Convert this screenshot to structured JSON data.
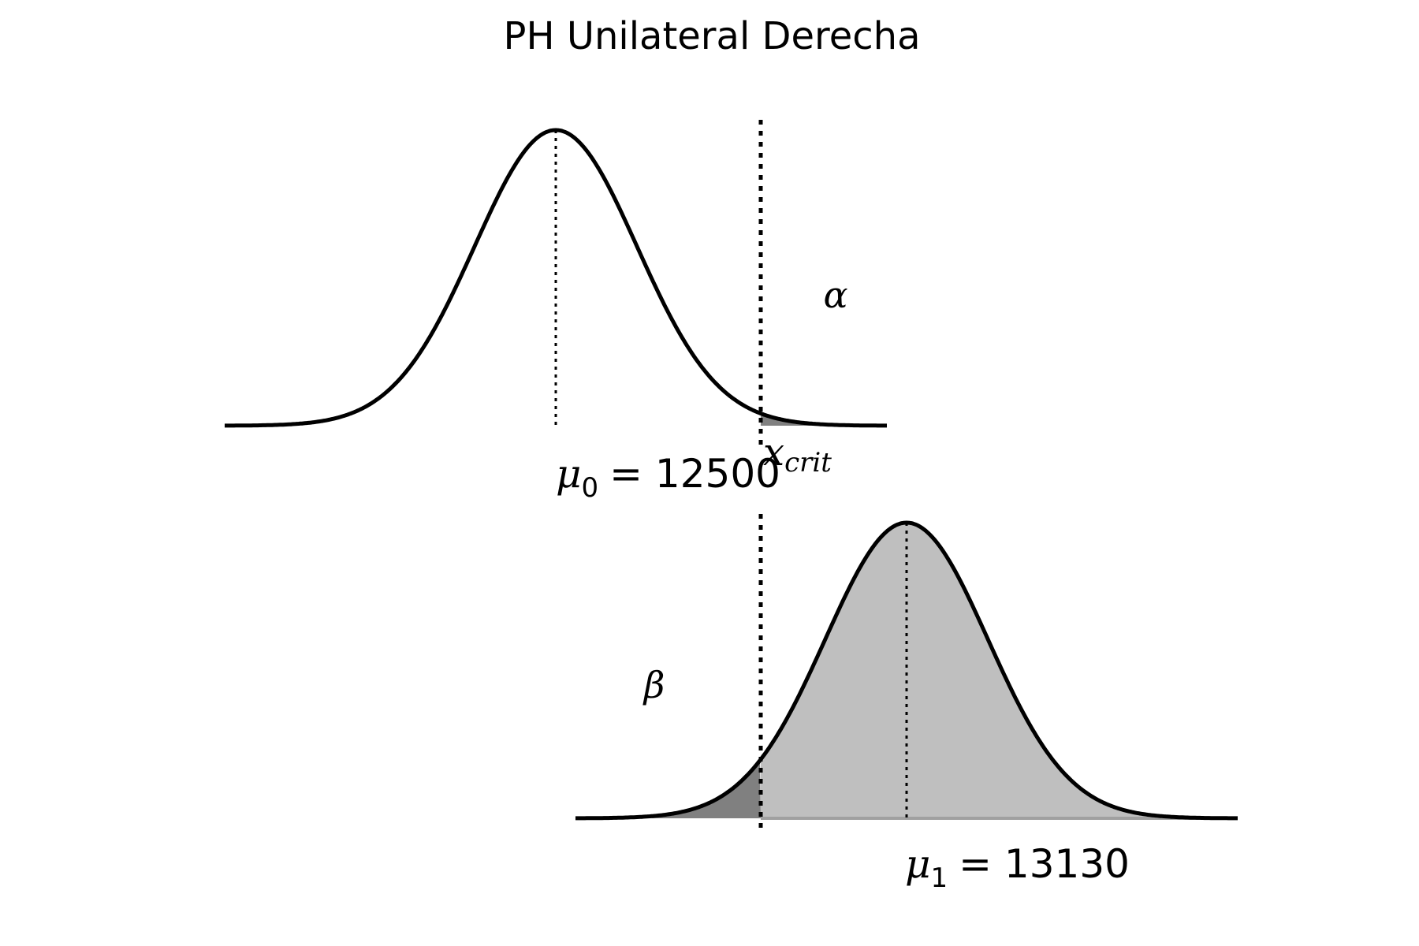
{
  "title": "PH Unilateral Derecha",
  "null_distribution": {
    "mean_label_symbol": "μ",
    "mean_label_subscript": "0",
    "mean_label_value": "= 12500",
    "mean": 12500
  },
  "alternative_distribution": {
    "mean_label_symbol": "μ",
    "mean_label_subscript": "1",
    "mean_label_value": "= 13130",
    "mean": 13130
  },
  "critical_value": {
    "label_symbol": "x",
    "label_subscript": "crit"
  },
  "alpha_label": "α",
  "beta_label": "β",
  "colors": {
    "curve": "#000000",
    "alpha_fill": "#808080",
    "beta_fill": "#808080",
    "power_fill": "#bfbfbf"
  }
}
